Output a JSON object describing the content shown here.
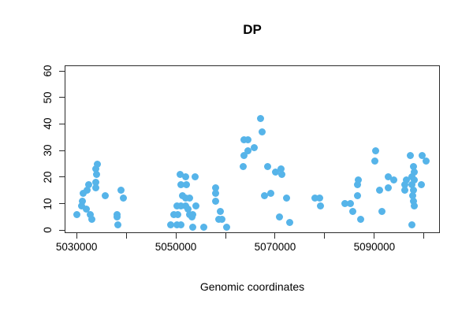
{
  "figure": {
    "title": "DP",
    "xlabel": "Genomic coordinates"
  },
  "chart_data": {
    "type": "scatter",
    "title": "DP",
    "xlabel": "Genomic coordinates",
    "ylabel": "",
    "grid": false,
    "legend": null,
    "marker": "filled-circle",
    "point_color": "#56B4E9",
    "axis_color": "#2b2b2b",
    "x_axis": {
      "range": [
        5027600,
        5103200
      ],
      "tick_spacing": 10000,
      "ticks": [
        {
          "value": 5030000,
          "label": "5030000"
        },
        {
          "value": 5040000,
          "label": ""
        },
        {
          "value": 5050000,
          "label": "5050000"
        },
        {
          "value": 5060000,
          "label": ""
        },
        {
          "value": 5070000,
          "label": "5070000"
        },
        {
          "value": 5080000,
          "label": ""
        },
        {
          "value": 5090000,
          "label": "5090000"
        },
        {
          "value": 5100000,
          "label": ""
        }
      ]
    },
    "y_axis": {
      "range": [
        -1.1,
        62.1
      ],
      "ticks": [
        0,
        10,
        20,
        30,
        40,
        50,
        60
      ]
    },
    "points": [
      [
        5034200,
        25
      ],
      [
        5033900,
        23
      ],
      [
        5034100,
        21
      ],
      [
        5033900,
        18
      ],
      [
        5032500,
        17
      ],
      [
        5033900,
        16
      ],
      [
        5032100,
        15
      ],
      [
        5031400,
        14
      ],
      [
        5035700,
        13
      ],
      [
        5031100,
        11
      ],
      [
        5031000,
        9
      ],
      [
        5031900,
        8
      ],
      [
        5030000,
        6
      ],
      [
        5032700,
        6
      ],
      [
        5033000,
        4
      ],
      [
        5038900,
        15
      ],
      [
        5039500,
        12
      ],
      [
        5038200,
        6
      ],
      [
        5038200,
        5
      ],
      [
        5038300,
        2
      ],
      [
        5050800,
        21
      ],
      [
        5051900,
        20
      ],
      [
        5053900,
        20
      ],
      [
        5051100,
        17
      ],
      [
        5052200,
        17
      ],
      [
        5051300,
        13
      ],
      [
        5051900,
        12
      ],
      [
        5052700,
        12
      ],
      [
        5050300,
        9
      ],
      [
        5051100,
        9
      ],
      [
        5051900,
        9
      ],
      [
        5052400,
        8
      ],
      [
        5054000,
        9
      ],
      [
        5049600,
        6
      ],
      [
        5050400,
        6
      ],
      [
        5052700,
        6
      ],
      [
        5053400,
        6
      ],
      [
        5053300,
        5
      ],
      [
        5049000,
        2
      ],
      [
        5050300,
        2
      ],
      [
        5051100,
        2
      ],
      [
        5053400,
        1
      ],
      [
        5055600,
        1
      ],
      [
        5060200,
        1
      ],
      [
        5058000,
        16
      ],
      [
        5058000,
        14
      ],
      [
        5058000,
        11
      ],
      [
        5058900,
        7
      ],
      [
        5058700,
        4
      ],
      [
        5059300,
        4
      ],
      [
        5063500,
        24
      ],
      [
        5063700,
        28
      ],
      [
        5064600,
        30
      ],
      [
        5063700,
        34
      ],
      [
        5064600,
        34
      ],
      [
        5065800,
        31
      ],
      [
        5067000,
        42
      ],
      [
        5067400,
        37
      ],
      [
        5068500,
        24
      ],
      [
        5070100,
        22
      ],
      [
        5071200,
        23
      ],
      [
        5071400,
        21
      ],
      [
        5067900,
        13
      ],
      [
        5069200,
        14
      ],
      [
        5072300,
        12
      ],
      [
        5070800,
        5
      ],
      [
        5073000,
        3
      ],
      [
        5078100,
        12
      ],
      [
        5078900,
        12
      ],
      [
        5079200,
        9
      ],
      [
        5084000,
        10
      ],
      [
        5085200,
        10
      ],
      [
        5085700,
        7
      ],
      [
        5086800,
        19
      ],
      [
        5086600,
        17
      ],
      [
        5086600,
        13
      ],
      [
        5087300,
        4
      ],
      [
        5090200,
        30
      ],
      [
        5090100,
        26
      ],
      [
        5091100,
        15
      ],
      [
        5091500,
        7
      ],
      [
        5092800,
        20
      ],
      [
        5093900,
        19
      ],
      [
        5092800,
        16
      ],
      [
        5096400,
        19
      ],
      [
        5096200,
        17
      ],
      [
        5096100,
        15
      ],
      [
        5097200,
        28
      ],
      [
        5097900,
        24
      ],
      [
        5098100,
        22
      ],
      [
        5097600,
        20
      ],
      [
        5098100,
        19
      ],
      [
        5097600,
        17
      ],
      [
        5097900,
        15
      ],
      [
        5097700,
        13
      ],
      [
        5097900,
        11
      ],
      [
        5098100,
        9
      ],
      [
        5099500,
        17
      ],
      [
        5099700,
        28
      ],
      [
        5100400,
        26
      ],
      [
        5097600,
        2
      ]
    ]
  }
}
